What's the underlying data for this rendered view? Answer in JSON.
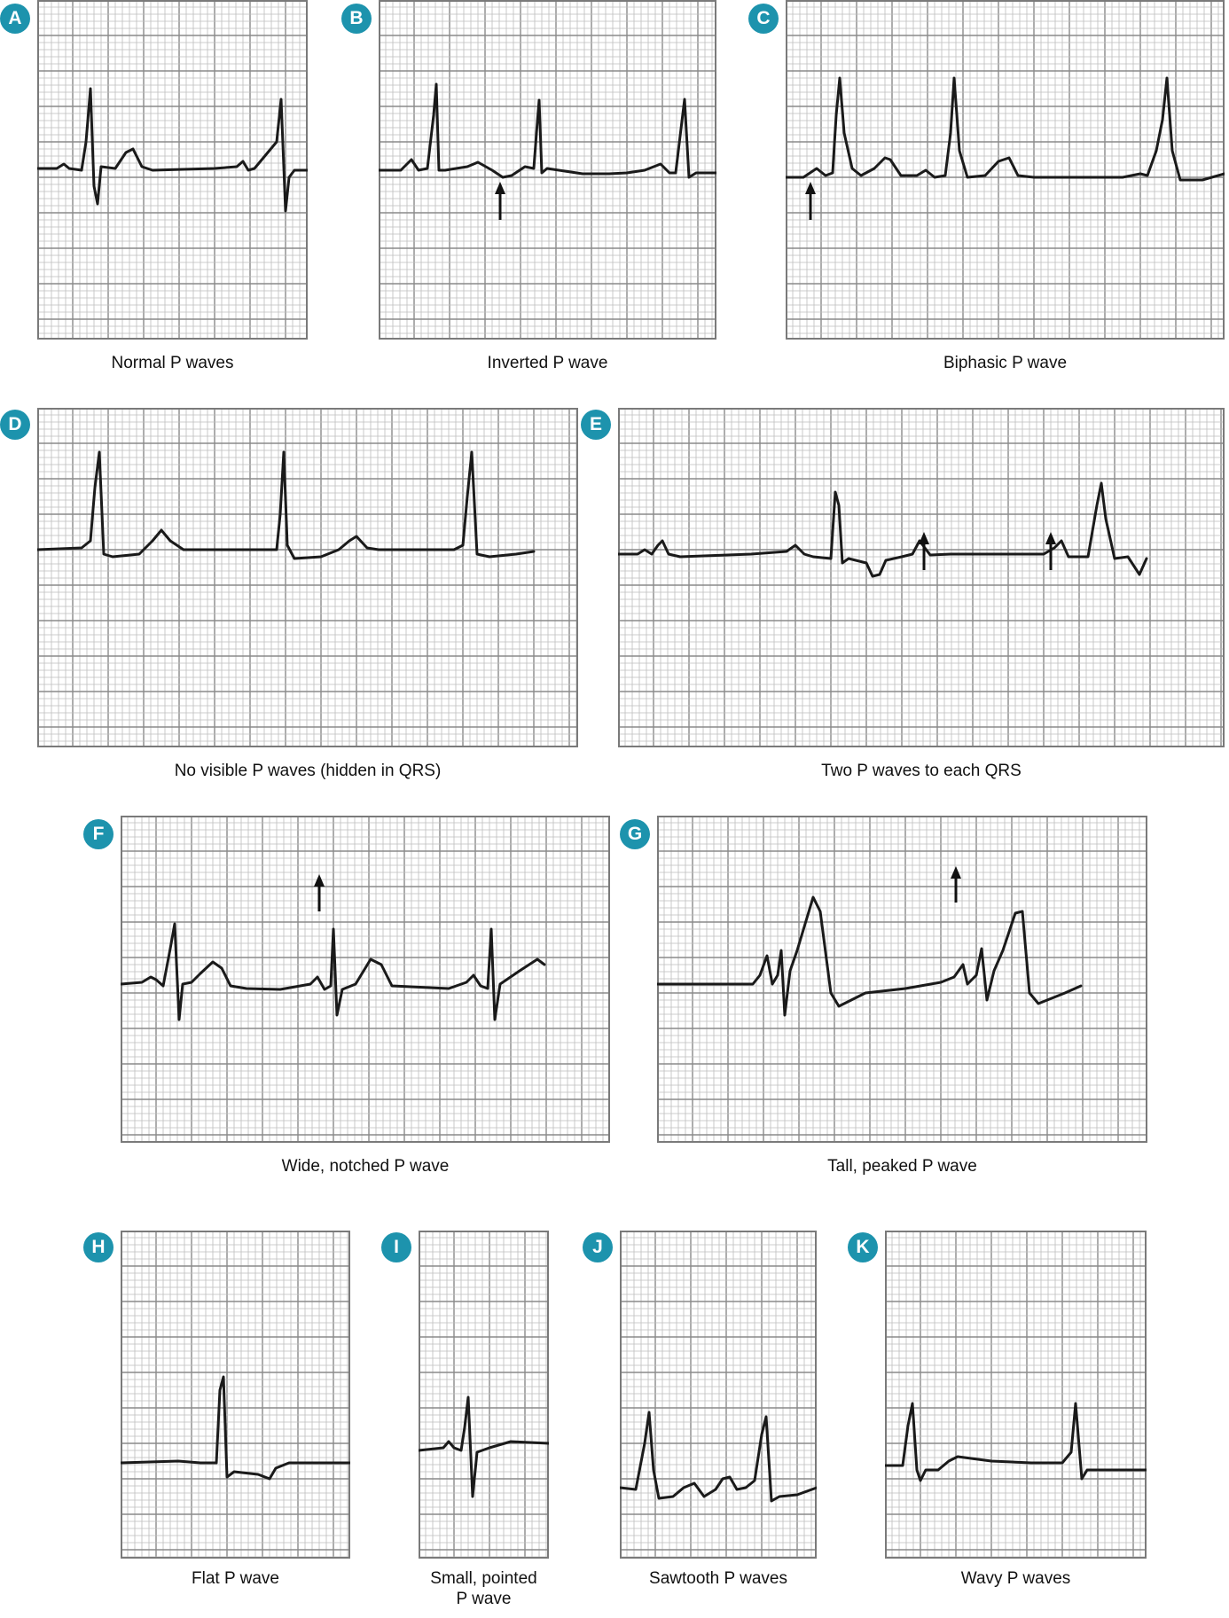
{
  "colors": {
    "grid_fine": "#bdbdbd",
    "grid_major": "#8a8a8a",
    "border": "#7a7a7a",
    "trace": "#1a1a1a",
    "badge": "#1d93ad",
    "arrow": "#111111"
  },
  "panels": [
    {
      "id": "a",
      "letter": "A",
      "caption": "Normal P waves",
      "arrows": 0
    },
    {
      "id": "b",
      "letter": "B",
      "caption": "Inverted P wave",
      "arrows": 1
    },
    {
      "id": "c",
      "letter": "C",
      "caption": "Biphasic P wave",
      "arrows": 1
    },
    {
      "id": "d",
      "letter": "D",
      "caption": "No visible P waves (hidden in QRS)",
      "arrows": 0
    },
    {
      "id": "e",
      "letter": "E",
      "caption": "Two P waves to each QRS",
      "arrows": 2
    },
    {
      "id": "f",
      "letter": "F",
      "caption": "Wide, notched P wave",
      "arrows": 1
    },
    {
      "id": "g",
      "letter": "G",
      "caption": "Tall, peaked P wave",
      "arrows": 1
    },
    {
      "id": "h",
      "letter": "H",
      "caption": "Flat P wave",
      "arrows": 0
    },
    {
      "id": "i",
      "letter": "I",
      "caption": "Small, pointed\nP wave",
      "arrows": 0
    },
    {
      "id": "j",
      "letter": "J",
      "caption": "Sawtooth P waves",
      "arrows": 0
    },
    {
      "id": "k",
      "letter": "K",
      "caption": "Wavy P waves",
      "arrows": 0
    }
  ]
}
